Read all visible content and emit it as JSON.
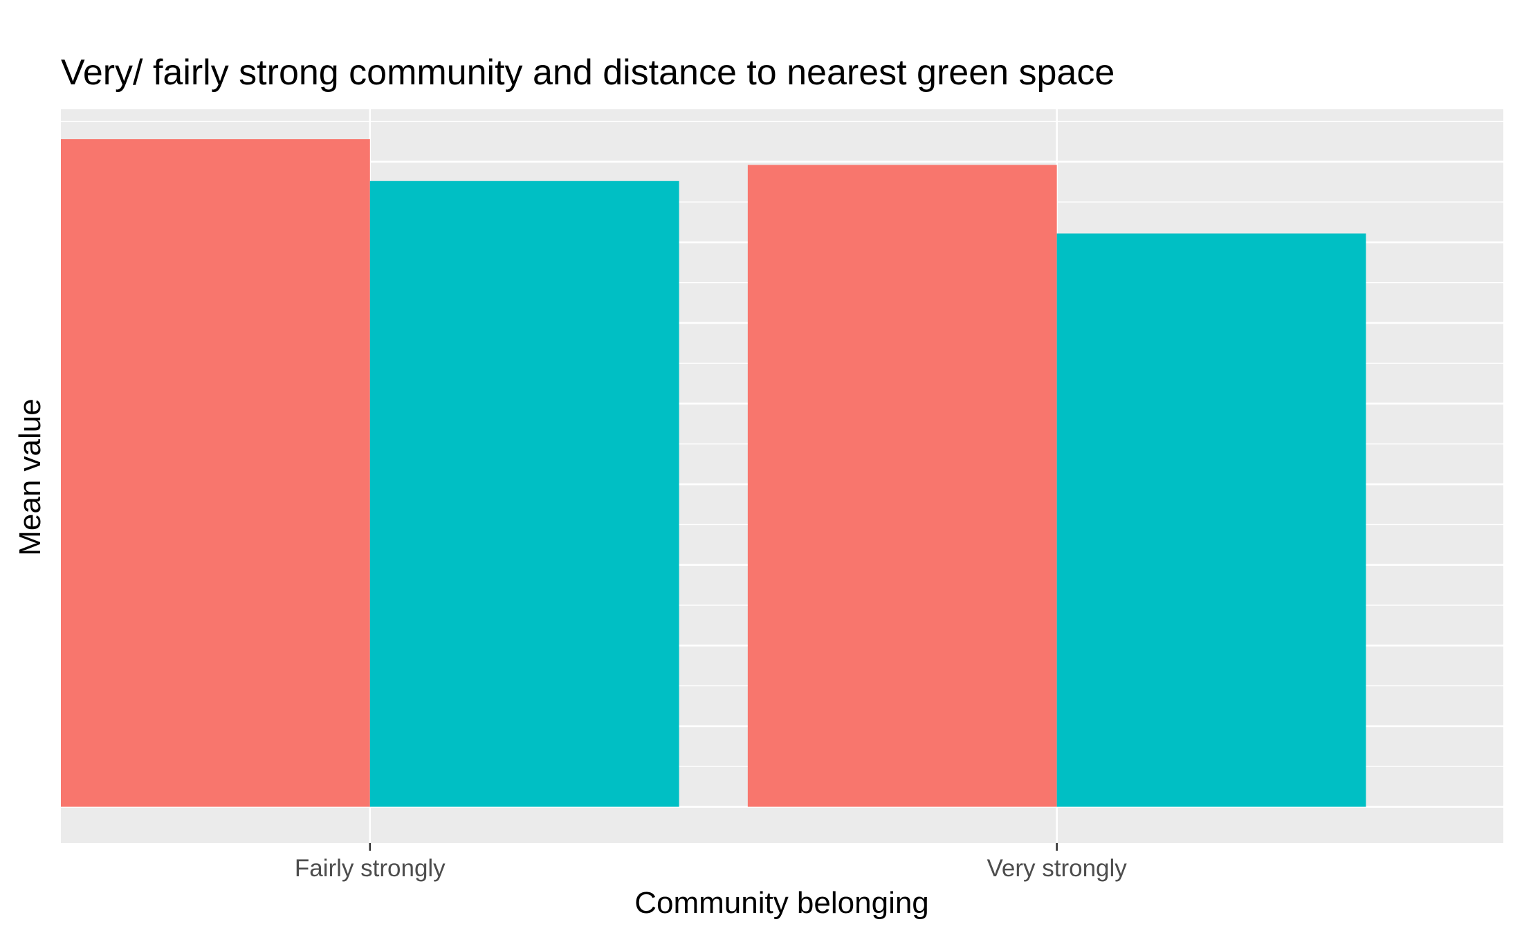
{
  "chart_data": {
    "type": "bar",
    "title": "Very/ fairly strong community and distance to nearest green space",
    "xlabel": "Community belonging",
    "ylabel": "Mean value",
    "categories": [
      "Fairly strongly",
      "Very strongly"
    ],
    "series": [
      {
        "values": [
          8.28,
          7.96
        ]
      },
      {
        "values": [
          7.76,
          7.11
        ]
      }
    ],
    "ylim": [
      -0.45,
      8.65
    ],
    "y_tick_labels_shown": false,
    "grid": true,
    "legend": "none",
    "colors": {
      "series_1": "#F8766D",
      "series_2": "#00BFC4",
      "panel_background": "#EBEBEB",
      "grid": "#FFFFFF",
      "tick_mark": "#333333"
    }
  }
}
